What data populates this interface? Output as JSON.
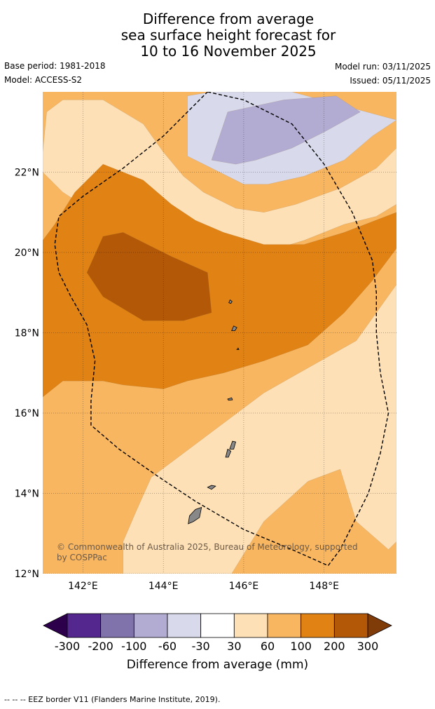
{
  "chart_data": {
    "type": "heatmap",
    "title": [
      "Difference from average",
      "sea surface height forecast for",
      "10 to 16 November 2025"
    ],
    "base_period": "Base period: 1981-2018",
    "model": "Model: ACCESS-S2",
    "model_run": "Model run: 03/11/2025",
    "issued": "Issued: 05/11/2025",
    "x_range": [
      141,
      149.8
    ],
    "y_range": [
      12,
      24
    ],
    "x_ticks": [
      {
        "value": 142,
        "label": "142°E"
      },
      {
        "value": 144,
        "label": "144°E"
      },
      {
        "value": 146,
        "label": "146°E"
      },
      {
        "value": 148,
        "label": "148°E"
      }
    ],
    "y_ticks": [
      {
        "value": 12,
        "label": "12°N"
      },
      {
        "value": 14,
        "label": "14°N"
      },
      {
        "value": 16,
        "label": "16°N"
      },
      {
        "value": 18,
        "label": "18°N"
      },
      {
        "value": 20,
        "label": "20°N"
      },
      {
        "value": 22,
        "label": "22°N"
      }
    ],
    "grid": true,
    "colorbar": {
      "label": "Difference from average (mm)",
      "boundaries": [
        "-300",
        "-200",
        "-100",
        "-60",
        "-30",
        "30",
        "60",
        "100",
        "200",
        "300"
      ],
      "colors": [
        "#54278f",
        "#8073ac",
        "#b2abd2",
        "#d8daeb",
        "#ffffff",
        "#fee0b6",
        "#f9b661",
        "#e08214",
        "#b35806"
      ],
      "under_color": "#2d004b",
      "over_color": "#7f3b08"
    },
    "regions": [
      {
        "name": "region-30-60-south",
        "color": "#fee0b6",
        "points": [
          [
            143,
            12
          ],
          [
            145.7,
            12
          ],
          [
            146.5,
            13.3
          ],
          [
            147.6,
            14.3
          ],
          [
            148.4,
            14.6
          ],
          [
            148.8,
            13.3
          ],
          [
            149.6,
            12.6
          ],
          [
            149.8,
            12.8
          ],
          [
            149.8,
            19.2
          ],
          [
            148.8,
            17.8
          ],
          [
            147.2,
            16.9
          ],
          [
            146.5,
            16.5
          ],
          [
            145.3,
            15.6
          ],
          [
            144.5,
            15
          ],
          [
            143.7,
            14.4
          ],
          [
            143.3,
            13.5
          ],
          [
            143,
            12.8
          ]
        ]
      },
      {
        "name": "region-30-60-north",
        "color": "#fee0b6",
        "points": [
          [
            141,
            22.5
          ],
          [
            141.1,
            23.5
          ],
          [
            141.5,
            23.8
          ],
          [
            142.5,
            23.8
          ],
          [
            143.5,
            23.2
          ],
          [
            144,
            22.5
          ],
          [
            144.5,
            21.9
          ],
          [
            145,
            21.5
          ],
          [
            145.8,
            21.1
          ],
          [
            146.5,
            21
          ],
          [
            147.3,
            21.2
          ],
          [
            148.4,
            21.6
          ],
          [
            149.3,
            22.1
          ],
          [
            149.8,
            22.6
          ],
          [
            149.8,
            21.2
          ],
          [
            149.3,
            20.9
          ],
          [
            148.5,
            20.7
          ],
          [
            147.5,
            20.3
          ],
          [
            146.5,
            20
          ],
          [
            145.8,
            19.9
          ],
          [
            143.5,
            20.2
          ],
          [
            141.5,
            21.5
          ],
          [
            141,
            22
          ]
        ]
      },
      {
        "name": "region-100-200",
        "color": "#e08214",
        "points": [
          [
            141,
            20.3
          ],
          [
            141.3,
            20.7
          ],
          [
            141.8,
            21.5
          ],
          [
            142.5,
            22.2
          ],
          [
            143.5,
            21.8
          ],
          [
            144.2,
            21.2
          ],
          [
            144.8,
            20.8
          ],
          [
            145.5,
            20.5
          ],
          [
            146.5,
            20.2
          ],
          [
            147.5,
            20.2
          ],
          [
            148.5,
            20.5
          ],
          [
            149.8,
            21
          ],
          [
            149.8,
            20.1
          ],
          [
            149.2,
            19.3
          ],
          [
            148.5,
            18.5
          ],
          [
            147.6,
            17.7
          ],
          [
            146.5,
            17.3
          ],
          [
            145.5,
            17
          ],
          [
            144.6,
            16.8
          ],
          [
            144,
            16.6
          ],
          [
            143,
            16.7
          ],
          [
            142.5,
            16.8
          ],
          [
            141.5,
            16.8
          ],
          [
            141,
            16.4
          ]
        ]
      },
      {
        "name": "region-200-300",
        "color": "#b35806",
        "points": [
          [
            142.5,
            20.4
          ],
          [
            143,
            20.5
          ],
          [
            144.2,
            19.9
          ],
          [
            145.1,
            19.5
          ],
          [
            145.2,
            18.5
          ],
          [
            144.5,
            18.3
          ],
          [
            143.5,
            18.3
          ],
          [
            142.5,
            18.9
          ],
          [
            142.1,
            19.5
          ]
        ]
      },
      {
        "name": "region-minus60-minus30",
        "color": "#d8daeb",
        "points": [
          [
            144.6,
            23.9
          ],
          [
            145.2,
            24
          ],
          [
            147.2,
            24
          ],
          [
            149.8,
            23.3
          ],
          [
            149.2,
            22.9
          ],
          [
            148.5,
            22.3
          ],
          [
            147.5,
            21.9
          ],
          [
            146.6,
            21.7
          ],
          [
            146,
            21.7
          ],
          [
            145.4,
            22
          ],
          [
            144.6,
            22.4
          ]
        ]
      },
      {
        "name": "region-minus100-minus60",
        "color": "#b2abd2",
        "points": [
          [
            145.2,
            22.3
          ],
          [
            145.6,
            23.5
          ],
          [
            147,
            23.8
          ],
          [
            148.3,
            23.9
          ],
          [
            148.9,
            23.5
          ],
          [
            148,
            23
          ],
          [
            147.2,
            22.6
          ],
          [
            146.3,
            22.3
          ],
          [
            145.8,
            22.2
          ]
        ]
      }
    ],
    "islands": [
      {
        "name": "guam",
        "points": [
          [
            144.62,
            13.24
          ],
          [
            144.65,
            13.44
          ],
          [
            144.8,
            13.6
          ],
          [
            144.95,
            13.65
          ],
          [
            144.9,
            13.4
          ],
          [
            144.75,
            13.3
          ]
        ]
      },
      {
        "name": "rota",
        "points": [
          [
            145.1,
            14.15
          ],
          [
            145.2,
            14.2
          ],
          [
            145.3,
            14.18
          ],
          [
            145.2,
            14.1
          ]
        ]
      },
      {
        "name": "tinian",
        "points": [
          [
            145.55,
            14.9
          ],
          [
            145.6,
            15.1
          ],
          [
            145.68,
            15.05
          ],
          [
            145.62,
            14.9
          ]
        ]
      },
      {
        "name": "saipan",
        "points": [
          [
            145.65,
            15.1
          ],
          [
            145.72,
            15.3
          ],
          [
            145.8,
            15.28
          ],
          [
            145.75,
            15.1
          ]
        ]
      },
      {
        "name": "anatahan",
        "points": [
          [
            145.6,
            16.35
          ],
          [
            145.7,
            16.38
          ],
          [
            145.72,
            16.33
          ],
          [
            145.62,
            16.32
          ]
        ]
      },
      {
        "name": "alamagan",
        "points": [
          [
            145.83,
            17.58
          ],
          [
            145.86,
            17.62
          ],
          [
            145.88,
            17.58
          ]
        ]
      },
      {
        "name": "pagan",
        "points": [
          [
            145.7,
            18.05
          ],
          [
            145.75,
            18.17
          ],
          [
            145.83,
            18.13
          ],
          [
            145.78,
            18.05
          ]
        ]
      },
      {
        "name": "agrihan",
        "points": [
          [
            145.63,
            18.75
          ],
          [
            145.66,
            18.82
          ],
          [
            145.71,
            18.78
          ],
          [
            145.68,
            18.73
          ]
        ]
      }
    ],
    "eez_border": [
      [
        145.1,
        24
      ],
      [
        146,
        23.8
      ],
      [
        147.2,
        23.2
      ],
      [
        148,
        22.2
      ],
      [
        148.7,
        21
      ],
      [
        149.2,
        19.8
      ],
      [
        149.3,
        19
      ],
      [
        149.3,
        18
      ],
      [
        149.4,
        17
      ],
      [
        149.6,
        16
      ],
      [
        149.4,
        15
      ],
      [
        149.1,
        14
      ],
      [
        148.6,
        13
      ],
      [
        148.4,
        12.6
      ],
      [
        148.1,
        12.2
      ],
      [
        147.2,
        12.6
      ],
      [
        146,
        13.1
      ],
      [
        144.8,
        13.8
      ],
      [
        143.9,
        14.4
      ],
      [
        142.9,
        15.1
      ],
      [
        142.2,
        15.7
      ],
      [
        142.2,
        16.3
      ],
      [
        142.3,
        17.3
      ],
      [
        142.1,
        18.2
      ],
      [
        141.7,
        18.9
      ],
      [
        141.4,
        19.5
      ],
      [
        141.3,
        20.2
      ],
      [
        141.4,
        20.9
      ],
      [
        142,
        21.4
      ],
      [
        143,
        22.1
      ],
      [
        144,
        22.9
      ],
      [
        145.1,
        24
      ]
    ],
    "copyright": [
      "© Commonwealth of Australia 2025, Bureau of Meteorology, supported",
      "by COSPPac"
    ],
    "footnote": "-- -- -- EEZ border V11 (Flanders Marine Institute, 2019)."
  }
}
